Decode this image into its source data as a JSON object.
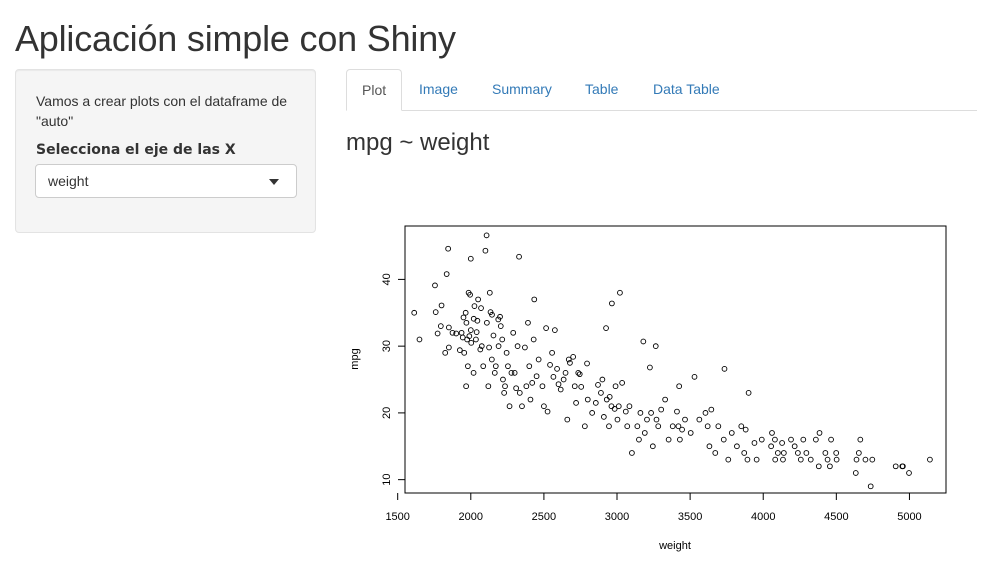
{
  "app": {
    "title": "Aplicación simple con Shiny"
  },
  "sidebar": {
    "description": "Vamos a crear plots con el dataframe de \"auto\"",
    "select_label": "Selecciona el eje de las X",
    "select_value": "weight"
  },
  "tabs": [
    {
      "label": "Plot",
      "active": true
    },
    {
      "label": "Image",
      "active": false
    },
    {
      "label": "Summary",
      "active": false
    },
    {
      "label": "Table",
      "active": false
    },
    {
      "label": "Data Table",
      "active": false
    }
  ],
  "main": {
    "plot_title": "mpg ~ weight"
  },
  "colors": {
    "link": "#337ab7",
    "well": "#f5f5f5",
    "border": "#dddddd"
  },
  "chart_data": {
    "type": "scatter",
    "xlabel": "weight",
    "ylabel": "mpg",
    "xlim": [
      1550,
      5250
    ],
    "ylim": [
      8,
      48
    ],
    "xticks": [
      1500,
      2000,
      2500,
      3000,
      3500,
      4000,
      4500,
      5000
    ],
    "yticks": [
      10,
      20,
      30,
      40
    ],
    "grid": false,
    "marker": "open-circle",
    "points": [
      [
        1613,
        35
      ],
      [
        1649,
        31
      ],
      [
        1755,
        39.1
      ],
      [
        1760,
        35.1
      ],
      [
        1773,
        31.9
      ],
      [
        1795,
        33
      ],
      [
        1800,
        36.1
      ],
      [
        1825,
        29
      ],
      [
        1835,
        40.8
      ],
      [
        1845,
        44.6
      ],
      [
        1850,
        29.8
      ],
      [
        1850,
        32.8
      ],
      [
        1875,
        32
      ],
      [
        1900,
        31.9
      ],
      [
        1925,
        29.4
      ],
      [
        1937,
        32
      ],
      [
        1945,
        31.3
      ],
      [
        1950,
        34.3
      ],
      [
        1955,
        29
      ],
      [
        1965,
        35
      ],
      [
        1968,
        24
      ],
      [
        1970,
        33.5
      ],
      [
        1975,
        31
      ],
      [
        1980,
        27
      ],
      [
        1985,
        38
      ],
      [
        1990,
        31.5
      ],
      [
        1995,
        37.7
      ],
      [
        2000,
        43.1
      ],
      [
        2000,
        32.4
      ],
      [
        2003,
        30.5
      ],
      [
        2019,
        26
      ],
      [
        2020,
        34.1
      ],
      [
        2025,
        36
      ],
      [
        2035,
        31
      ],
      [
        2040,
        32.1
      ],
      [
        2045,
        33.8
      ],
      [
        2050,
        37
      ],
      [
        2065,
        29.5
      ],
      [
        2070,
        35.7
      ],
      [
        2075,
        30
      ],
      [
        2085,
        27
      ],
      [
        2100,
        44.3
      ],
      [
        2108,
        46.6
      ],
      [
        2110,
        33.5
      ],
      [
        2120,
        24
      ],
      [
        2125,
        29.8
      ],
      [
        2130,
        38
      ],
      [
        2135,
        35.1
      ],
      [
        2144,
        28
      ],
      [
        2145,
        34.7
      ],
      [
        2155,
        31.6
      ],
      [
        2164,
        26
      ],
      [
        2171,
        27
      ],
      [
        2188,
        34
      ],
      [
        2190,
        30
      ],
      [
        2200,
        34.4
      ],
      [
        2205,
        33
      ],
      [
        2215,
        31
      ],
      [
        2220,
        25
      ],
      [
        2228,
        23
      ],
      [
        2234,
        24
      ],
      [
        2245,
        29
      ],
      [
        2254,
        27
      ],
      [
        2265,
        21
      ],
      [
        2278,
        26
      ],
      [
        2290,
        32
      ],
      [
        2300,
        26
      ],
      [
        2310,
        23.7
      ],
      [
        2320,
        30
      ],
      [
        2330,
        43.4
      ],
      [
        2335,
        23
      ],
      [
        2350,
        21
      ],
      [
        2370,
        29.8
      ],
      [
        2380,
        24
      ],
      [
        2391,
        33.5
      ],
      [
        2400,
        27
      ],
      [
        2408,
        22
      ],
      [
        2420,
        24.5
      ],
      [
        2430,
        31
      ],
      [
        2434,
        37
      ],
      [
        2450,
        25.5
      ],
      [
        2464,
        28
      ],
      [
        2490,
        24
      ],
      [
        2500,
        21
      ],
      [
        2515,
        32.7
      ],
      [
        2525,
        20.2
      ],
      [
        2542,
        27.2
      ],
      [
        2556,
        29
      ],
      [
        2565,
        25.4
      ],
      [
        2575,
        32.4
      ],
      [
        2590,
        26.6
      ],
      [
        2600,
        24.3
      ],
      [
        2615,
        23.5
      ],
      [
        2635,
        25
      ],
      [
        2648,
        26
      ],
      [
        2660,
        19
      ],
      [
        2670,
        28
      ],
      [
        2678,
        27.5
      ],
      [
        2700,
        28.4
      ],
      [
        2711,
        24
      ],
      [
        2720,
        21.5
      ],
      [
        2735,
        26
      ],
      [
        2745,
        25.8
      ],
      [
        2755,
        23.9
      ],
      [
        2780,
        18
      ],
      [
        2795,
        27.4
      ],
      [
        2800,
        22
      ],
      [
        2830,
        20
      ],
      [
        2855,
        21.5
      ],
      [
        2870,
        24.2
      ],
      [
        2890,
        23
      ],
      [
        2900,
        25
      ],
      [
        2910,
        19.4
      ],
      [
        2925,
        32.7
      ],
      [
        2930,
        22
      ],
      [
        2945,
        18
      ],
      [
        2950,
        22.4
      ],
      [
        2962,
        21
      ],
      [
        2965,
        36.4
      ],
      [
        2984,
        20.6
      ],
      [
        2990,
        24
      ],
      [
        3003,
        19
      ],
      [
        3012,
        21
      ],
      [
        3020,
        38
      ],
      [
        3035,
        24.5
      ],
      [
        3060,
        20.2
      ],
      [
        3070,
        18
      ],
      [
        3085,
        21
      ],
      [
        3102,
        14
      ],
      [
        3139,
        18
      ],
      [
        3150,
        16
      ],
      [
        3160,
        20
      ],
      [
        3180,
        30.7
      ],
      [
        3190,
        17
      ],
      [
        3205,
        19
      ],
      [
        3225,
        26.8
      ],
      [
        3233,
        20
      ],
      [
        3245,
        15
      ],
      [
        3265,
        30
      ],
      [
        3270,
        19
      ],
      [
        3282,
        18
      ],
      [
        3302,
        20.5
      ],
      [
        3329,
        22
      ],
      [
        3353,
        16
      ],
      [
        3381,
        18
      ],
      [
        3410,
        20.2
      ],
      [
        3420,
        18
      ],
      [
        3425,
        24
      ],
      [
        3430,
        16
      ],
      [
        3445,
        17.5
      ],
      [
        3465,
        19
      ],
      [
        3504,
        17
      ],
      [
        3530,
        25.4
      ],
      [
        3563,
        19
      ],
      [
        3605,
        20
      ],
      [
        3620,
        18
      ],
      [
        3632,
        15
      ],
      [
        3645,
        20.5
      ],
      [
        3672,
        14
      ],
      [
        3693,
        18
      ],
      [
        3730,
        16
      ],
      [
        3735,
        26.6
      ],
      [
        3761,
        13
      ],
      [
        3785,
        17
      ],
      [
        3820,
        15
      ],
      [
        3850,
        18
      ],
      [
        3870,
        14
      ],
      [
        3880,
        17.5
      ],
      [
        3892,
        13
      ],
      [
        3900,
        23
      ],
      [
        3940,
        15.5
      ],
      [
        3955,
        13
      ],
      [
        3990,
        16
      ],
      [
        4054,
        15
      ],
      [
        4060,
        17
      ],
      [
        4080,
        16
      ],
      [
        4082,
        13
      ],
      [
        4100,
        14
      ],
      [
        4129,
        15.5
      ],
      [
        4135,
        13
      ],
      [
        4141,
        14
      ],
      [
        4190,
        16
      ],
      [
        4215,
        15
      ],
      [
        4237,
        14
      ],
      [
        4257,
        13
      ],
      [
        4274,
        16
      ],
      [
        4295,
        14
      ],
      [
        4325,
        13
      ],
      [
        4360,
        16
      ],
      [
        4380,
        12
      ],
      [
        4385,
        17
      ],
      [
        4425,
        14
      ],
      [
        4440,
        13
      ],
      [
        4456,
        12
      ],
      [
        4464,
        16
      ],
      [
        4499,
        14
      ],
      [
        4502,
        13
      ],
      [
        4633,
        11
      ],
      [
        4638,
        13
      ],
      [
        4654,
        14
      ],
      [
        4664,
        16
      ],
      [
        4699,
        13
      ],
      [
        4735,
        9
      ],
      [
        4746,
        13
      ],
      [
        4906,
        12
      ],
      [
        4951,
        12
      ],
      [
        4955,
        12
      ],
      [
        4997,
        11
      ],
      [
        5140,
        13
      ]
    ]
  }
}
